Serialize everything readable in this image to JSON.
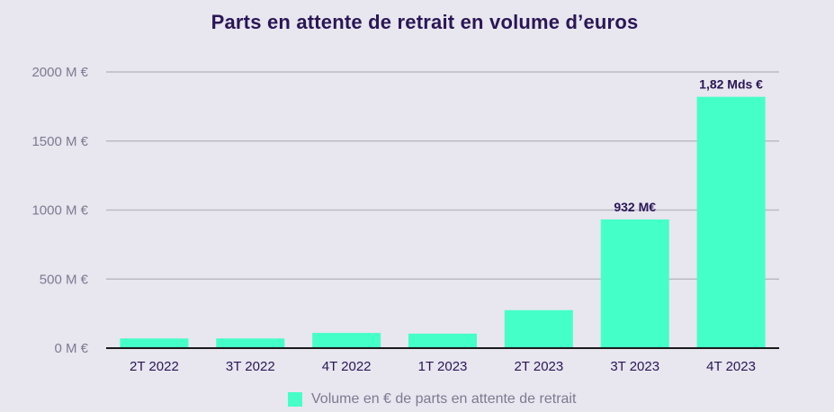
{
  "chart_data": {
    "type": "bar",
    "title": "Parts en attente de retrait en volume d’euros",
    "xlabel": "",
    "ylabel": "",
    "categories": [
      "2T 2022",
      "3T 2022",
      "4T 2022",
      "1T 2023",
      "2T 2023",
      "3T 2023",
      "4T 2023"
    ],
    "series": [
      {
        "name": "Volume en € de parts en attente de retrait",
        "values": [
          70,
          70,
          110,
          105,
          275,
          932,
          1820
        ]
      }
    ],
    "data_labels": [
      "",
      "",
      "",
      "",
      "",
      "932 M€",
      "1,82 Mds €"
    ],
    "ylim": [
      0,
      2000
    ],
    "yticks": [
      0,
      500,
      1000,
      1500,
      2000
    ],
    "ytick_labels": [
      "0 M €",
      "500 M €",
      "1000 M €",
      "1500 M €",
      "2000 M €"
    ],
    "grid": true,
    "legend_position": "bottom",
    "colors": {
      "bar": "#45ffc9",
      "title": "#2a1656",
      "grid": "#bcbac6",
      "axis": "#1a1a1a"
    }
  }
}
